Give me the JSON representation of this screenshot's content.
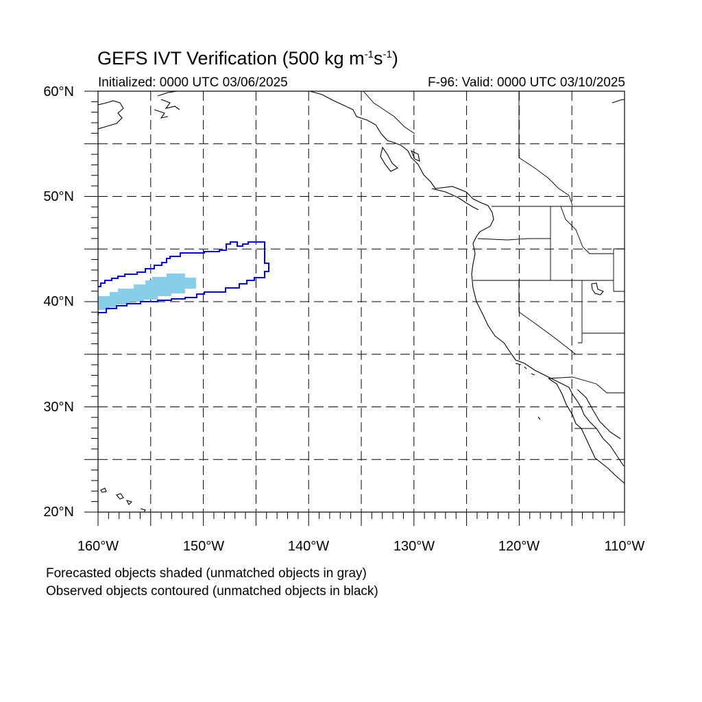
{
  "title": {
    "main": "GEFS IVT Verification (500 kg m",
    "sup1": "-1",
    "mid": "s",
    "sup2": "-1",
    "end": ")"
  },
  "subtitle": {
    "initialized": "Initialized: 0000 UTC 03/06/2025",
    "valid": "F-96: Valid: 0000 UTC 03/10/2025"
  },
  "map": {
    "lon_range": [
      -160,
      -110
    ],
    "lat_range": [
      20,
      60
    ],
    "grid": "dashed every 5°",
    "lat_labels": [
      "60°N",
      "50°N",
      "40°N",
      "30°N",
      "20°N"
    ],
    "lon_labels": [
      "160°W",
      "150°W",
      "140°W",
      "130°W",
      "120°W",
      "110°W"
    ]
  },
  "objects": {
    "forecast_shaded_color": "#87ceeb",
    "observed_contour_color": "#0000ff"
  },
  "footer": {
    "line1": "Forecasted objects shaded (unmatched objects in gray)",
    "line2": "Observed objects contoured (unmatched objects in black)"
  }
}
